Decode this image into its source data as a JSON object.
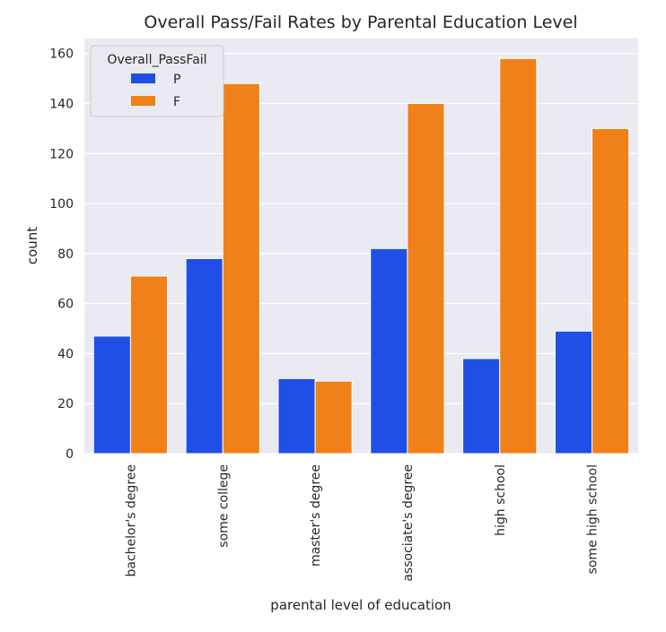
{
  "chart_data": {
    "type": "bar",
    "title": "Overall Pass/Fail Rates by Parental Education Level",
    "xlabel": "parental level of education",
    "ylabel": "count",
    "categories": [
      "bachelor's degree",
      "some college",
      "master's degree",
      "associate's degree",
      "high school",
      "some high school"
    ],
    "series": [
      {
        "name": "P",
        "color": "#1f4fe6",
        "values": [
          47,
          78,
          30,
          82,
          38,
          49
        ]
      },
      {
        "name": "F",
        "color": "#f08019",
        "values": [
          71,
          148,
          29,
          140,
          158,
          130
        ]
      }
    ],
    "ylim": [
      0,
      166
    ],
    "yticks": [
      0,
      20,
      40,
      60,
      80,
      100,
      120,
      140,
      160
    ],
    "legend": {
      "title": "Overall_PassFail",
      "position": "top-left"
    },
    "grid": true,
    "background": "#eaeaf2"
  }
}
